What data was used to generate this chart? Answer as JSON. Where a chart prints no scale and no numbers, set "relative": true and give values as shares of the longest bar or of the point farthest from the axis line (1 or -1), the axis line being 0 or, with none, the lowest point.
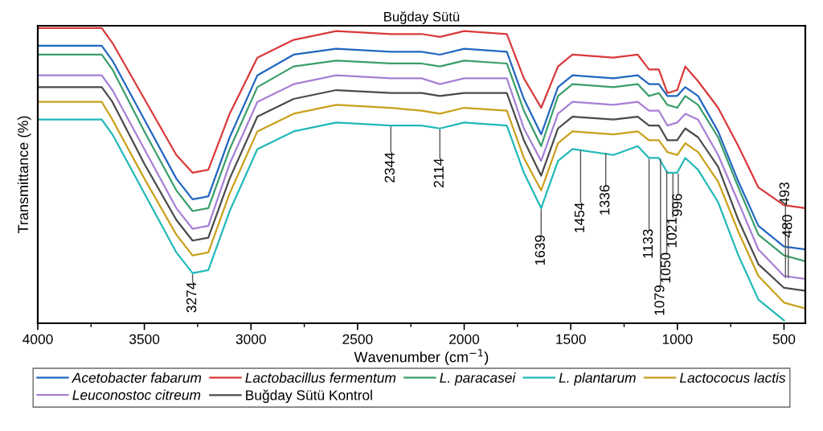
{
  "chart_data": {
    "type": "line",
    "title": "Buğday Sütü",
    "xlabel": "Wavenumber (cm$^{−1}$)",
    "ylabel": "Transmittance (%)",
    "relative": true,
    "tick_labels": "x",
    "legend": "bottom",
    "grid": false,
    "marker": "none",
    "line_style": "solid",
    "xlim": [
      4000,
      400
    ],
    "xticks": [
      4000,
      {
        "value": 3750,
        "label": null
      },
      3500,
      {
        "value": 3250,
        "label": null
      },
      3000,
      {
        "value": 2750,
        "label": null
      },
      2500,
      {
        "value": 2250,
        "label": null
      },
      2000,
      {
        "value": 1750,
        "label": null
      },
      1500,
      {
        "value": 1250,
        "label": null
      },
      1000,
      {
        "value": 750,
        "label": null
      },
      500
    ],
    "x": [
      4000,
      3700,
      3650,
      3500,
      3350,
      3274,
      3200,
      3100,
      2970,
      2800,
      2600,
      2344,
      2200,
      2114,
      2000,
      1800,
      1720,
      1639,
      1560,
      1492,
      1300,
      1186,
      1133,
      1087,
      1047,
      1001,
      963,
      903,
      809,
      714,
      620,
      500,
      400
    ],
    "series": [
      {
        "name": "Acetobacter fabarum",
        "color": "#2166c0",
        "values": [
          0.94,
          0.94,
          0.89,
          0.69,
          0.49,
          0.42,
          0.43,
          0.63,
          0.84,
          0.91,
          0.93,
          0.92,
          0.92,
          0.91,
          0.93,
          0.92,
          0.76,
          0.64,
          0.8,
          0.84,
          0.83,
          0.84,
          0.81,
          0.81,
          0.77,
          0.77,
          0.8,
          0.77,
          0.65,
          0.48,
          0.33,
          0.26,
          0.25
        ]
      },
      {
        "name": "Lactobacillus fermentum",
        "color": "#d9393a",
        "values": [
          1.0,
          1.0,
          0.95,
          0.76,
          0.57,
          0.51,
          0.52,
          0.71,
          0.9,
          0.96,
          0.99,
          0.98,
          0.98,
          0.97,
          0.99,
          0.98,
          0.83,
          0.73,
          0.87,
          0.91,
          0.9,
          0.91,
          0.86,
          0.86,
          0.78,
          0.79,
          0.87,
          0.82,
          0.73,
          0.6,
          0.46,
          0.4,
          0.39
        ]
      },
      {
        "name": "L. paracasei",
        "color": "#3a9e6a",
        "values": [
          0.91,
          0.91,
          0.86,
          0.65,
          0.45,
          0.38,
          0.39,
          0.59,
          0.8,
          0.87,
          0.89,
          0.88,
          0.88,
          0.87,
          0.89,
          0.88,
          0.72,
          0.6,
          0.77,
          0.81,
          0.8,
          0.81,
          0.77,
          0.78,
          0.74,
          0.73,
          0.77,
          0.74,
          0.63,
          0.46,
          0.3,
          0.23,
          0.21
        ]
      },
      {
        "name": "L. plantarum",
        "color": "#22b8b8",
        "values": [
          0.69,
          0.69,
          0.64,
          0.44,
          0.24,
          0.17,
          0.18,
          0.38,
          0.59,
          0.65,
          0.68,
          0.67,
          0.67,
          0.66,
          0.68,
          0.67,
          0.51,
          0.39,
          0.55,
          0.59,
          0.57,
          0.6,
          0.56,
          0.56,
          0.51,
          0.51,
          0.56,
          0.52,
          0.41,
          0.23,
          0.08,
          0.01,
          null
        ]
      },
      {
        "name": "Lactococus lactis",
        "color": "#c9a01a",
        "values": [
          0.75,
          0.75,
          0.69,
          0.49,
          0.3,
          0.23,
          0.24,
          0.44,
          0.65,
          0.71,
          0.74,
          0.73,
          0.72,
          0.71,
          0.73,
          0.72,
          0.56,
          0.45,
          0.61,
          0.65,
          0.64,
          0.65,
          0.62,
          0.62,
          0.58,
          0.57,
          0.61,
          0.58,
          0.48,
          0.31,
          0.16,
          0.07,
          0.05
        ]
      },
      {
        "name": "Leuconostoc citreum",
        "color": "#a77fd6",
        "values": [
          0.84,
          0.84,
          0.79,
          0.59,
          0.39,
          0.32,
          0.33,
          0.54,
          0.75,
          0.81,
          0.84,
          0.83,
          0.83,
          0.81,
          0.83,
          0.83,
          0.66,
          0.55,
          0.71,
          0.75,
          0.74,
          0.75,
          0.72,
          0.72,
          0.67,
          0.68,
          0.71,
          0.69,
          0.57,
          0.41,
          0.25,
          0.16,
          0.15
        ]
      },
      {
        "name": "Buğday Sütü Kontrol",
        "color": "#4a4a4a",
        "values": [
          0.8,
          0.8,
          0.75,
          0.54,
          0.35,
          0.28,
          0.29,
          0.49,
          0.7,
          0.76,
          0.79,
          0.78,
          0.78,
          0.77,
          0.78,
          0.78,
          0.62,
          0.5,
          0.66,
          0.7,
          0.69,
          0.7,
          0.67,
          0.67,
          0.62,
          0.62,
          0.66,
          0.63,
          0.53,
          0.35,
          0.2,
          0.12,
          0.11
        ]
      }
    ],
    "annotations": [
      {
        "text": "3274",
        "x": 3274,
        "y": 0.17
      },
      {
        "text": "2344",
        "x": 2344,
        "y": 0.67
      },
      {
        "text": "2114",
        "x": 2114,
        "y": 0.66
      },
      {
        "text": "1639",
        "x": 1639,
        "y": 0.39
      },
      {
        "text": "1454",
        "x": 1454,
        "y": 0.59
      },
      {
        "text": "1336",
        "x": 1336,
        "y": 0.58
      },
      {
        "text": "1133",
        "x": 1133,
        "y": 0.56
      },
      {
        "text": "1079",
        "x": 1079,
        "y": 0.56
      },
      {
        "text": "1050",
        "x": 1050,
        "y": 0.52
      },
      {
        "text": "1021",
        "x": 1021,
        "y": 0.51
      },
      {
        "text": "996",
        "x": 996,
        "y": 0.51
      },
      {
        "text": "493",
        "x": 493,
        "y": 0.16
      },
      {
        "text": "480",
        "x": 480,
        "y": 0.16
      }
    ]
  }
}
